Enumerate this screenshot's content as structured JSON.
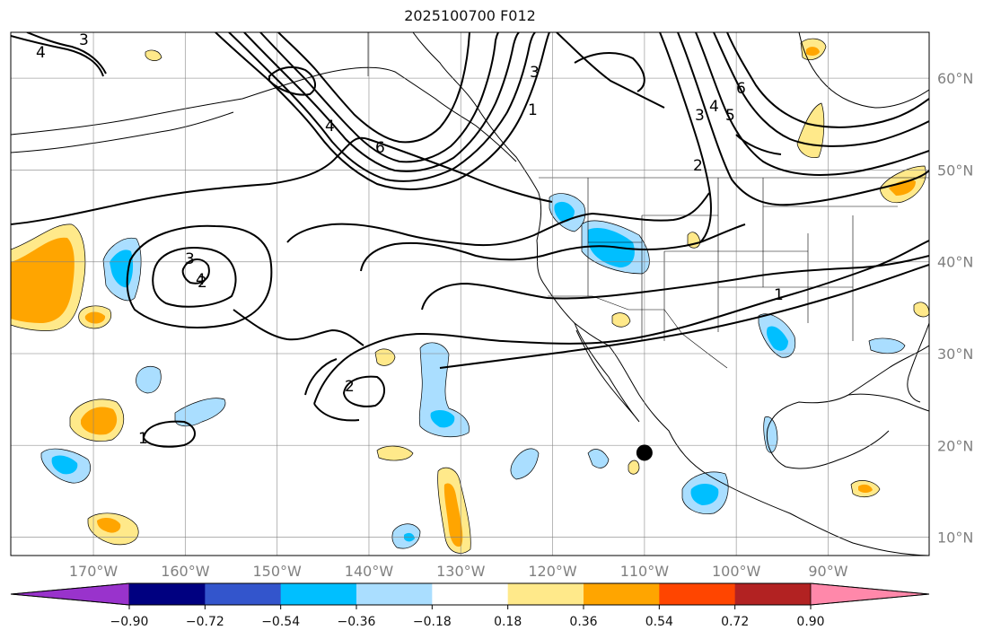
{
  "title": "2025100700 F012",
  "map": {
    "projection": "plate-carree",
    "lon_range": [
      -179,
      -79
    ],
    "lat_range": [
      8,
      65
    ],
    "grid_lines": true,
    "lon_ticks": [
      {
        "value": -170,
        "label": "170°W"
      },
      {
        "value": -160,
        "label": "160°W"
      },
      {
        "value": -150,
        "label": "150°W"
      },
      {
        "value": -140,
        "label": "140°W"
      },
      {
        "value": -130,
        "label": "130°W"
      },
      {
        "value": -120,
        "label": "120°W"
      },
      {
        "value": -110,
        "label": "110°W"
      },
      {
        "value": -100,
        "label": "100°W"
      },
      {
        "value": -90,
        "label": "90°W"
      }
    ],
    "lat_ticks": [
      {
        "value": 60,
        "label": "60°N"
      },
      {
        "value": 50,
        "label": "50°N"
      },
      {
        "value": 40,
        "label": "40°N"
      },
      {
        "value": 30,
        "label": "30°N"
      },
      {
        "value": 20,
        "label": "20°N"
      },
      {
        "value": 10,
        "label": "10°N"
      }
    ],
    "marker": {
      "lon": -110,
      "lat": 19.2,
      "color": "#000000"
    },
    "contour_labels": [
      "1",
      "2",
      "3",
      "4",
      "6",
      "5"
    ]
  },
  "colorbar": {
    "colors": [
      "#9933cc",
      "#000080",
      "#3355cc",
      "#00bfff",
      "#aadeff",
      "#ffffff",
      "#ffe98a",
      "#ffa500",
      "#ff4500",
      "#b22222",
      "#ff88aa"
    ],
    "tick_labels": [
      "−0.90",
      "−0.72",
      "−0.54",
      "−0.36",
      "−0.18",
      "0.18",
      "0.36",
      "0.54",
      "0.72",
      "0.90"
    ]
  }
}
